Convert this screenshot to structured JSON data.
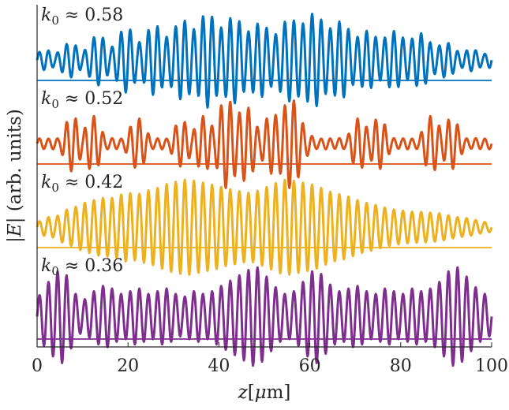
{
  "chart_data": {
    "type": "line",
    "xlabel": "z[μm]",
    "ylabel": "|E| (arb. units)",
    "xlim": [
      0,
      100
    ],
    "xticks": [
      0,
      20,
      40,
      60,
      80,
      100
    ],
    "grid": false,
    "legend": "none",
    "panels": [
      {
        "label": "k₀ ≈ 0.58",
        "label_var": "k",
        "label_sub": "0",
        "label_rest": " ≈ 0.58",
        "color": "#0072bd",
        "x": [
          0,
          1,
          2,
          3,
          4,
          5,
          6,
          7,
          8,
          9,
          10,
          11,
          12,
          13,
          14,
          15,
          16,
          17,
          18,
          19,
          20,
          21,
          22,
          23,
          24,
          25,
          26,
          27,
          28,
          29,
          30,
          31,
          32,
          33,
          34,
          35,
          36,
          37,
          38,
          39,
          40,
          41,
          42,
          43,
          44,
          45,
          46,
          47,
          48,
          49,
          50,
          51,
          52,
          53,
          54,
          55,
          56,
          57,
          58,
          59,
          60,
          61,
          62,
          63,
          64,
          65,
          66,
          67,
          68,
          69,
          70,
          71,
          72,
          73,
          74,
          75,
          76,
          77,
          78,
          79,
          80,
          81,
          82,
          83,
          84,
          85,
          86,
          87,
          88,
          89,
          90,
          91,
          92,
          93,
          94,
          95,
          96,
          97,
          98,
          99,
          100
        ],
        "y": [
          0.15,
          0.19,
          0.22,
          0.18,
          0.12,
          0.2,
          0.3,
          0.37,
          0.35,
          0.26,
          0.15,
          0.27,
          0.42,
          0.53,
          0.52,
          0.41,
          0.22,
          0.34,
          0.52,
          0.66,
          0.69,
          0.58,
          0.36,
          0.39,
          0.55,
          0.7,
          0.75,
          0.66,
          0.48,
          0.49,
          0.63,
          0.78,
          0.85,
          0.79,
          0.63,
          0.66,
          0.83,
          1.0,
          0.98,
          0.83,
          0.66,
          0.7,
          0.83,
          0.92,
          0.88,
          0.74,
          0.58,
          0.62,
          0.73,
          0.79,
          0.74,
          0.61,
          0.5,
          0.58,
          0.74,
          0.86,
          0.86,
          0.79,
          0.73,
          0.8,
          0.93,
          1.0,
          0.92,
          0.77,
          0.64,
          0.69,
          0.79,
          0.82,
          0.73,
          0.57,
          0.46,
          0.51,
          0.6,
          0.62,
          0.54,
          0.43,
          0.42,
          0.52,
          0.61,
          0.6,
          0.52,
          0.42,
          0.4,
          0.5,
          0.57,
          0.55,
          0.43,
          0.31,
          0.27,
          0.34,
          0.38,
          0.33,
          0.23,
          0.15,
          0.17,
          0.23,
          0.23,
          0.18,
          0.12,
          0.14,
          0.18
        ]
      },
      {
        "label": "k₀ ≈ 0.52",
        "label_var": "k",
        "label_sub": "0",
        "label_rest": " ≈ 0.52",
        "color": "#d95319",
        "x": [
          0,
          1,
          2,
          3,
          4,
          5,
          6,
          7,
          8,
          9,
          10,
          11,
          12,
          13,
          14,
          15,
          16,
          17,
          18,
          19,
          20,
          21,
          22,
          23,
          24,
          25,
          26,
          27,
          28,
          29,
          30,
          31,
          32,
          33,
          34,
          35,
          36,
          37,
          38,
          39,
          40,
          41,
          42,
          43,
          44,
          45,
          46,
          47,
          48,
          49,
          50,
          51,
          52,
          53,
          54,
          55,
          56,
          57,
          58,
          59,
          60,
          61,
          62,
          63,
          64,
          65,
          66,
          67,
          68,
          69,
          70,
          71,
          72,
          73,
          74,
          75,
          76,
          77,
          78,
          79,
          80,
          81,
          82,
          83,
          84,
          85,
          86,
          87,
          88,
          89,
          90,
          91,
          92,
          93,
          94,
          95,
          96,
          97,
          98,
          99,
          100
        ],
        "y": [
          0.1,
          0.12,
          0.1,
          0.11,
          0.12,
          0.1,
          0.35,
          0.55,
          0.6,
          0.45,
          0.2,
          0.45,
          0.6,
          0.55,
          0.35,
          0.12,
          0.11,
          0.12,
          0.1,
          0.11,
          0.25,
          0.45,
          0.55,
          0.5,
          0.3,
          0.12,
          0.1,
          0.12,
          0.11,
          0.1,
          0.3,
          0.45,
          0.5,
          0.4,
          0.2,
          0.4,
          0.55,
          0.6,
          0.45,
          0.3,
          0.7,
          0.9,
          0.95,
          0.8,
          0.55,
          0.75,
          0.8,
          0.7,
          0.45,
          0.25,
          0.45,
          0.6,
          0.65,
          0.55,
          0.7,
          0.9,
          0.95,
          0.85,
          0.55,
          0.3,
          0.2,
          0.12,
          0.1,
          0.11,
          0.12,
          0.1,
          0.11,
          0.12,
          0.1,
          0.3,
          0.5,
          0.55,
          0.45,
          0.25,
          0.45,
          0.55,
          0.5,
          0.3,
          0.12,
          0.11,
          0.1,
          0.12,
          0.11,
          0.1,
          0.12,
          0.35,
          0.55,
          0.6,
          0.5,
          0.25,
          0.45,
          0.55,
          0.5,
          0.3,
          0.12,
          0.1,
          0.11,
          0.12,
          0.1,
          0.11,
          0.12
        ]
      },
      {
        "label": "k₀ ≈ 0.42",
        "label_var": "k",
        "label_sub": "0",
        "label_rest": " ≈ 0.42",
        "color": "#edb120",
        "x": [
          0,
          1,
          2,
          3,
          4,
          5,
          6,
          7,
          8,
          9,
          10,
          11,
          12,
          13,
          14,
          15,
          16,
          17,
          18,
          19,
          20,
          21,
          22,
          23,
          24,
          25,
          26,
          27,
          28,
          29,
          30,
          31,
          32,
          33,
          34,
          35,
          36,
          37,
          38,
          39,
          40,
          41,
          42,
          43,
          44,
          45,
          46,
          47,
          48,
          49,
          50,
          51,
          52,
          53,
          54,
          55,
          56,
          57,
          58,
          59,
          60,
          61,
          62,
          63,
          64,
          65,
          66,
          67,
          68,
          69,
          70,
          71,
          72,
          73,
          74,
          75,
          76,
          77,
          78,
          79,
          80,
          81,
          82,
          83,
          84,
          85,
          86,
          87,
          88,
          89,
          90,
          91,
          92,
          93,
          94,
          95,
          96,
          97,
          98,
          99,
          100
        ],
        "y": [
          0.1,
          0.15,
          0.2,
          0.22,
          0.2,
          0.28,
          0.35,
          0.38,
          0.4,
          0.45,
          0.5,
          0.52,
          0.55,
          0.58,
          0.6,
          0.62,
          0.6,
          0.62,
          0.66,
          0.7,
          0.72,
          0.7,
          0.68,
          0.72,
          0.76,
          0.78,
          0.8,
          0.84,
          0.88,
          0.92,
          0.94,
          0.96,
          0.98,
          1.0,
          0.98,
          0.96,
          0.94,
          0.92,
          0.9,
          0.88,
          0.86,
          0.82,
          0.8,
          0.78,
          0.76,
          0.74,
          0.72,
          0.72,
          0.74,
          0.78,
          0.82,
          0.86,
          0.9,
          0.94,
          0.98,
          1.0,
          0.98,
          0.96,
          0.94,
          0.92,
          0.9,
          0.88,
          0.84,
          0.8,
          0.76,
          0.72,
          0.7,
          0.68,
          0.66,
          0.62,
          0.58,
          0.55,
          0.52,
          0.5,
          0.48,
          0.45,
          0.42,
          0.4,
          0.38,
          0.36,
          0.35,
          0.34,
          0.33,
          0.32,
          0.32,
          0.32,
          0.31,
          0.3,
          0.3,
          0.28,
          0.26,
          0.24,
          0.22,
          0.2,
          0.2,
          0.18,
          0.16,
          0.14,
          0.12,
          0.1,
          0.1
        ]
      },
      {
        "label": "k₀ ≈ 0.36",
        "label_var": "k",
        "label_sub": "0",
        "label_rest": " ≈ 0.36",
        "color": "#7e2f8e",
        "x": [
          0,
          1,
          2,
          3,
          4,
          5,
          6,
          7,
          8,
          9,
          10,
          11,
          12,
          13,
          14,
          15,
          16,
          17,
          18,
          19,
          20,
          21,
          22,
          23,
          24,
          25,
          26,
          27,
          28,
          29,
          30,
          31,
          32,
          33,
          34,
          35,
          36,
          37,
          38,
          39,
          40,
          41,
          42,
          43,
          44,
          45,
          46,
          47,
          48,
          49,
          50,
          51,
          52,
          53,
          54,
          55,
          56,
          57,
          58,
          59,
          60,
          61,
          62,
          63,
          64,
          65,
          66,
          67,
          68,
          69,
          70,
          71,
          72,
          73,
          74,
          75,
          76,
          77,
          78,
          79,
          80,
          81,
          82,
          83,
          84,
          85,
          86,
          87,
          88,
          89,
          90,
          91,
          92,
          93,
          94,
          95,
          96,
          97,
          98,
          99,
          100
        ],
        "y": [
          0.3,
          0.5,
          0.6,
          0.7,
          0.8,
          0.9,
          0.85,
          0.7,
          0.5,
          0.35,
          0.3,
          0.35,
          0.45,
          0.5,
          0.55,
          0.6,
          0.55,
          0.5,
          0.45,
          0.4,
          0.45,
          0.5,
          0.55,
          0.5,
          0.45,
          0.4,
          0.45,
          0.5,
          0.55,
          0.5,
          0.45,
          0.4,
          0.35,
          0.4,
          0.45,
          0.5,
          0.45,
          0.4,
          0.45,
          0.5,
          0.55,
          0.6,
          0.65,
          0.7,
          0.75,
          0.8,
          0.85,
          0.9,
          0.95,
          0.9,
          0.8,
          0.7,
          0.6,
          0.5,
          0.45,
          0.4,
          0.45,
          0.5,
          0.6,
          0.7,
          0.8,
          0.9,
          0.85,
          0.75,
          0.65,
          0.55,
          0.5,
          0.45,
          0.5,
          0.55,
          0.6,
          0.55,
          0.5,
          0.45,
          0.4,
          0.45,
          0.5,
          0.55,
          0.5,
          0.45,
          0.4,
          0.45,
          0.5,
          0.55,
          0.5,
          0.45,
          0.5,
          0.55,
          0.6,
          0.7,
          0.8,
          0.9,
          0.95,
          0.9,
          0.8,
          0.7,
          0.6,
          0.5,
          0.45,
          0.4,
          0.35
        ]
      }
    ]
  }
}
